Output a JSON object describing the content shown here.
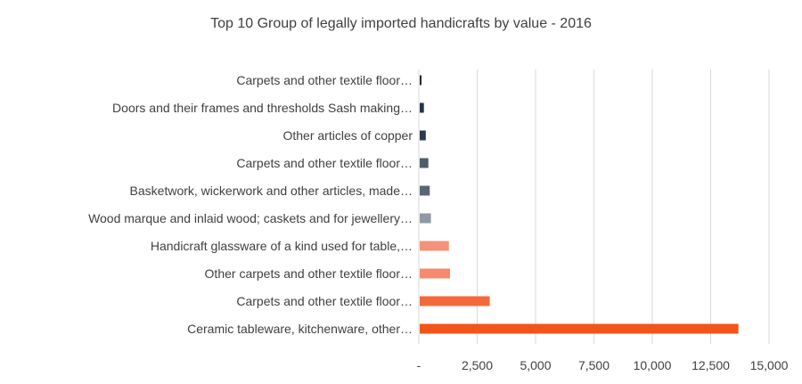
{
  "chart_data": {
    "type": "bar",
    "orientation": "horizontal",
    "title": "Top 10 Group of legally imported handicrafts by value - 2016",
    "xlabel": "",
    "ylabel": "",
    "xlim": [
      0,
      15000
    ],
    "grid": true,
    "legend": "none",
    "categories": [
      "Carpets and other textile floor…",
      "Doors and their frames and thresholds Sash making…",
      "Other articles of copper",
      "Carpets and other textile floor…",
      "Basketwork, wickerwork and other articles, made…",
      "Wood marque and inlaid wood; caskets and for jewellery…",
      "Handicraft glassware of a kind used for table,…",
      "Other carpets and other textile floor…",
      "Carpets and other textile floor…",
      "Ceramic tableware, kitchenware, other…"
    ],
    "values": [
      50,
      180,
      260,
      370,
      430,
      480,
      1250,
      1300,
      3000,
      13650
    ],
    "colors": [
      "#1f2d3d",
      "#263445",
      "#2b3a4c",
      "#4f5b69",
      "#5b6674",
      "#8f98a3",
      "#f4937a",
      "#f58b6e",
      "#f4693c",
      "#f25519"
    ],
    "tick_labels": [
      "-",
      "2,500",
      "5,000",
      "7,500",
      "10,000",
      "12,500",
      "15,000"
    ],
    "tick_values": [
      0,
      2500,
      5000,
      7500,
      10000,
      12500,
      15000
    ]
  }
}
